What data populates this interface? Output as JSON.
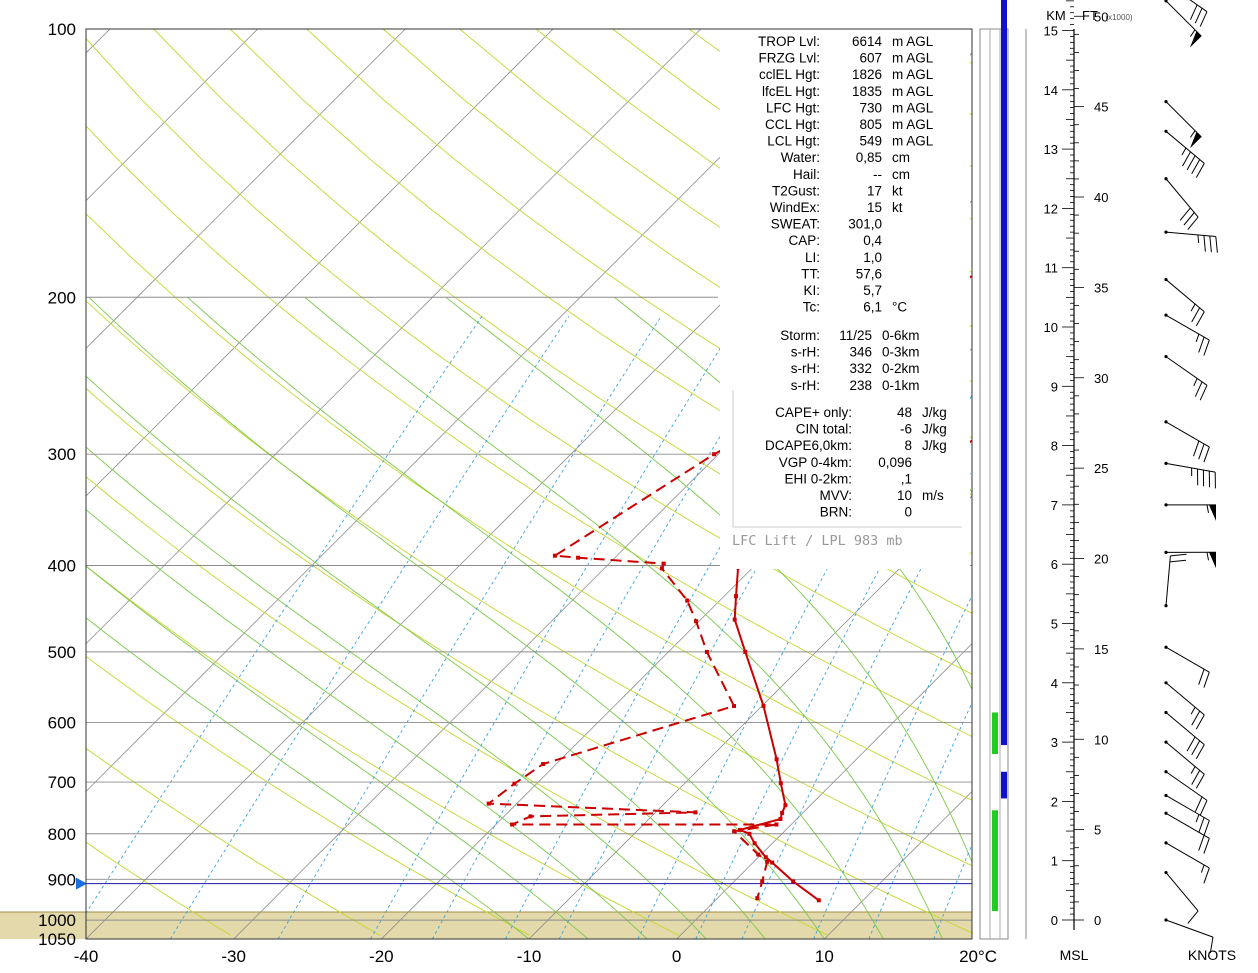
{
  "chart_data": {
    "type": "line",
    "title": "",
    "xlabel": "",
    "ylabel": "",
    "x_unit": "°C",
    "xlim": [
      -40,
      20
    ],
    "pressure_range": [
      100,
      1050
    ],
    "x_ticks": [
      "-40",
      "-30",
      "-20",
      "-10",
      "0",
      "10",
      "20"
    ],
    "p_ticks": [
      {
        "p": 100,
        "label": "100"
      },
      {
        "p": 200,
        "label": "200"
      },
      {
        "p": 300,
        "label": "300"
      },
      {
        "p": 400,
        "label": "400"
      },
      {
        "p": 500,
        "label": "500"
      },
      {
        "p": 600,
        "label": "600"
      },
      {
        "p": 700,
        "label": "700"
      },
      {
        "p": 800,
        "label": "800"
      },
      {
        "p": 900,
        "label": "900"
      },
      {
        "p": 1000,
        "label": "1000"
      },
      {
        "p": 1050,
        "label": "1050"
      }
    ],
    "series": [
      {
        "style": "solid",
        "color": "#cc0000",
        "points": [
          [
            2.8,
            100
          ],
          [
            1.9,
            118
          ],
          [
            -2.3,
            130
          ],
          [
            -1.5,
            158
          ],
          [
            -2.0,
            162
          ],
          [
            -9.1,
            200
          ],
          [
            -9.9,
            207
          ],
          [
            -10.5,
            250
          ],
          [
            -10.8,
            253
          ],
          [
            -14.5,
            300
          ],
          [
            -20.5,
            388
          ],
          [
            -21.2,
            399
          ],
          [
            -21.0,
            402
          ],
          [
            -19.2,
            433
          ],
          [
            -17.7,
            460
          ],
          [
            -14.8,
            500
          ],
          [
            -9.9,
            575
          ],
          [
            -5.4,
            660
          ],
          [
            -3.5,
            702
          ],
          [
            -1.7,
            743
          ],
          [
            -1.4,
            758
          ],
          [
            -1.1,
            770
          ],
          [
            -3.1,
            792
          ],
          [
            -2.2,
            800
          ],
          [
            -1.2,
            820
          ],
          [
            0.5,
            850
          ],
          [
            1.3,
            862
          ],
          [
            4.0,
            905
          ],
          [
            7.0,
            950
          ]
        ]
      },
      {
        "style": "dashed",
        "color": "#cc0000",
        "points": [
          [
            -23.1,
            100
          ],
          [
            -21.6,
            120
          ],
          [
            -22.9,
            128
          ],
          [
            -21.7,
            132
          ],
          [
            -22.9,
            140
          ],
          [
            -21.2,
            158
          ],
          [
            -22.4,
            165
          ],
          [
            -25.9,
            200
          ],
          [
            -26.8,
            207
          ],
          [
            -26.6,
            253
          ],
          [
            -30.3,
            300
          ],
          [
            -34.2,
            390
          ],
          [
            -32.5,
            392
          ],
          [
            -26.3,
            398
          ],
          [
            -26.1,
            403
          ],
          [
            -22.2,
            438
          ],
          [
            -20.2,
            462
          ],
          [
            -17.4,
            500
          ],
          [
            -11.9,
            575
          ],
          [
            -20.9,
            668
          ],
          [
            -21.5,
            703
          ],
          [
            -21.9,
            740
          ],
          [
            -7.3,
            757
          ],
          [
            -18.2,
            765
          ],
          [
            -18.9,
            781
          ],
          [
            -1.0,
            781
          ],
          [
            -3.4,
            795
          ],
          [
            -0.2,
            844
          ],
          [
            0.9,
            860
          ],
          [
            1.9,
            905
          ],
          [
            2.7,
            945
          ]
        ]
      }
    ],
    "reference_line_pressure": 910
  },
  "params": [
    {
      "name": "TROP Lvl:",
      "value": "6614",
      "unit": "m AGL"
    },
    {
      "name": "FRZG Lvl:",
      "value": "607",
      "unit": "m AGL"
    },
    {
      "name": "cclEL Hgt:",
      "value": "1826",
      "unit": "m AGL"
    },
    {
      "name": "lfcEL Hgt:",
      "value": "1835",
      "unit": "m AGL"
    },
    {
      "name": "LFC Hgt:",
      "value": "730",
      "unit": "m AGL"
    },
    {
      "name": "CCL Hgt:",
      "value": "805",
      "unit": "m AGL"
    },
    {
      "name": "LCL Hgt:",
      "value": "549",
      "unit": "m AGL"
    },
    {
      "name": "Water:",
      "value": "0,85",
      "unit": "cm"
    },
    {
      "name": "Hail:",
      "value": "--",
      "unit": "cm"
    },
    {
      "name": "T2Gust:",
      "value": "17",
      "unit": "kt"
    },
    {
      "name": "WindEx:",
      "value": "15",
      "unit": "kt"
    },
    {
      "name": "SWEAT:",
      "value": "301,0",
      "unit": ""
    },
    {
      "name": "CAP:",
      "value": "0,4",
      "unit": ""
    },
    {
      "name": "LI:",
      "value": "1,0",
      "unit": ""
    },
    {
      "name": "TT:",
      "value": "57,6",
      "unit": ""
    },
    {
      "name": "KI:",
      "value": "5,7",
      "unit": ""
    },
    {
      "name": "Tc:",
      "value": "6,1",
      "unit": "°C"
    }
  ],
  "storm": [
    {
      "name": "Storm:",
      "value": "11/25",
      "unit": "0-6km"
    },
    {
      "name": "s-rH:",
      "value": "346",
      "unit": "0-3km"
    },
    {
      "name": "s-rH:",
      "value": "332",
      "unit": "0-2km"
    },
    {
      "name": "s-rH:",
      "value": "238",
      "unit": "0-1km"
    }
  ],
  "cape": [
    {
      "name": "CAPE+ only:",
      "value": "48",
      "unit": "J/kg"
    },
    {
      "name": "CIN total:",
      "value": "-6",
      "unit": "J/kg"
    },
    {
      "name": "DCAPE6,0km:",
      "value": "8",
      "unit": "J/kg"
    },
    {
      "name": "VGP 0-4km:",
      "value": "0,096",
      "unit": ""
    },
    {
      "name": "EHI 0-2km:",
      "value": ",1",
      "unit": ""
    },
    {
      "name": "MVV:",
      "value": "10",
      "unit": "m/s"
    },
    {
      "name": "BRN:",
      "value": "0",
      "unit": ""
    }
  ],
  "lfc_lift_label": "LFC Lift / LPL 983 mb",
  "height_axis": {
    "km_label": "KM",
    "ft_label": "FT",
    "ft_unit_label": "(x1000)",
    "msl_label": "MSL",
    "knots_label": "KNOTS",
    "km_ticks": [
      "0",
      "1",
      "2",
      "3",
      "4",
      "5",
      "6",
      "7",
      "8",
      "9",
      "10",
      "11",
      "12",
      "13",
      "14",
      "15"
    ],
    "ft_ticks": [
      "0",
      "5",
      "10",
      "15",
      "20",
      "25",
      "30",
      "35",
      "40",
      "45",
      "50"
    ]
  },
  "columns": {
    "blue_segments_km": [
      [
        2.05,
        2.5
      ],
      [
        2.95,
        15.8
      ]
    ],
    "green_segments_km": [
      [
        0.15,
        1.85
      ],
      [
        2.8,
        3.5
      ]
    ]
  },
  "wind_profile": [
    {
      "km": 0.0,
      "dir": 290,
      "kt": 10
    },
    {
      "km": 0.8,
      "dir": 320,
      "kt": 10
    },
    {
      "km": 1.3,
      "dir": 300,
      "kt": 15
    },
    {
      "km": 1.8,
      "dir": 300,
      "kt": 20
    },
    {
      "km": 2.1,
      "dir": 300,
      "kt": 25
    },
    {
      "km": 2.5,
      "dir": 305,
      "kt": 20
    },
    {
      "km": 3.0,
      "dir": 310,
      "kt": 25
    },
    {
      "km": 3.5,
      "dir": 310,
      "kt": 30
    },
    {
      "km": 4.0,
      "dir": 310,
      "kt": 25
    },
    {
      "km": 4.6,
      "dir": 300,
      "kt": 20
    },
    {
      "km": 5.3,
      "dir": 185,
      "kt": 20
    },
    {
      "km": 6.2,
      "dir": 270,
      "kt": 55
    },
    {
      "km": 7.0,
      "dir": 270,
      "kt": 55
    },
    {
      "km": 7.7,
      "dir": 280,
      "kt": 45
    },
    {
      "km": 8.4,
      "dir": 300,
      "kt": 30
    },
    {
      "km": 9.5,
      "dir": 305,
      "kt": 25
    },
    {
      "km": 10.2,
      "dir": 300,
      "kt": 25
    },
    {
      "km": 10.8,
      "dir": 310,
      "kt": 25
    },
    {
      "km": 11.6,
      "dir": 275,
      "kt": 35
    },
    {
      "km": 12.5,
      "dir": 320,
      "kt": 30
    },
    {
      "km": 13.3,
      "dir": 310,
      "kt": 45
    },
    {
      "km": 13.8,
      "dir": 315,
      "kt": 55
    },
    {
      "km": 15.5,
      "dir": 315,
      "kt": 55
    },
    {
      "km": 15.8,
      "dir": 305,
      "kt": 30
    }
  ]
}
